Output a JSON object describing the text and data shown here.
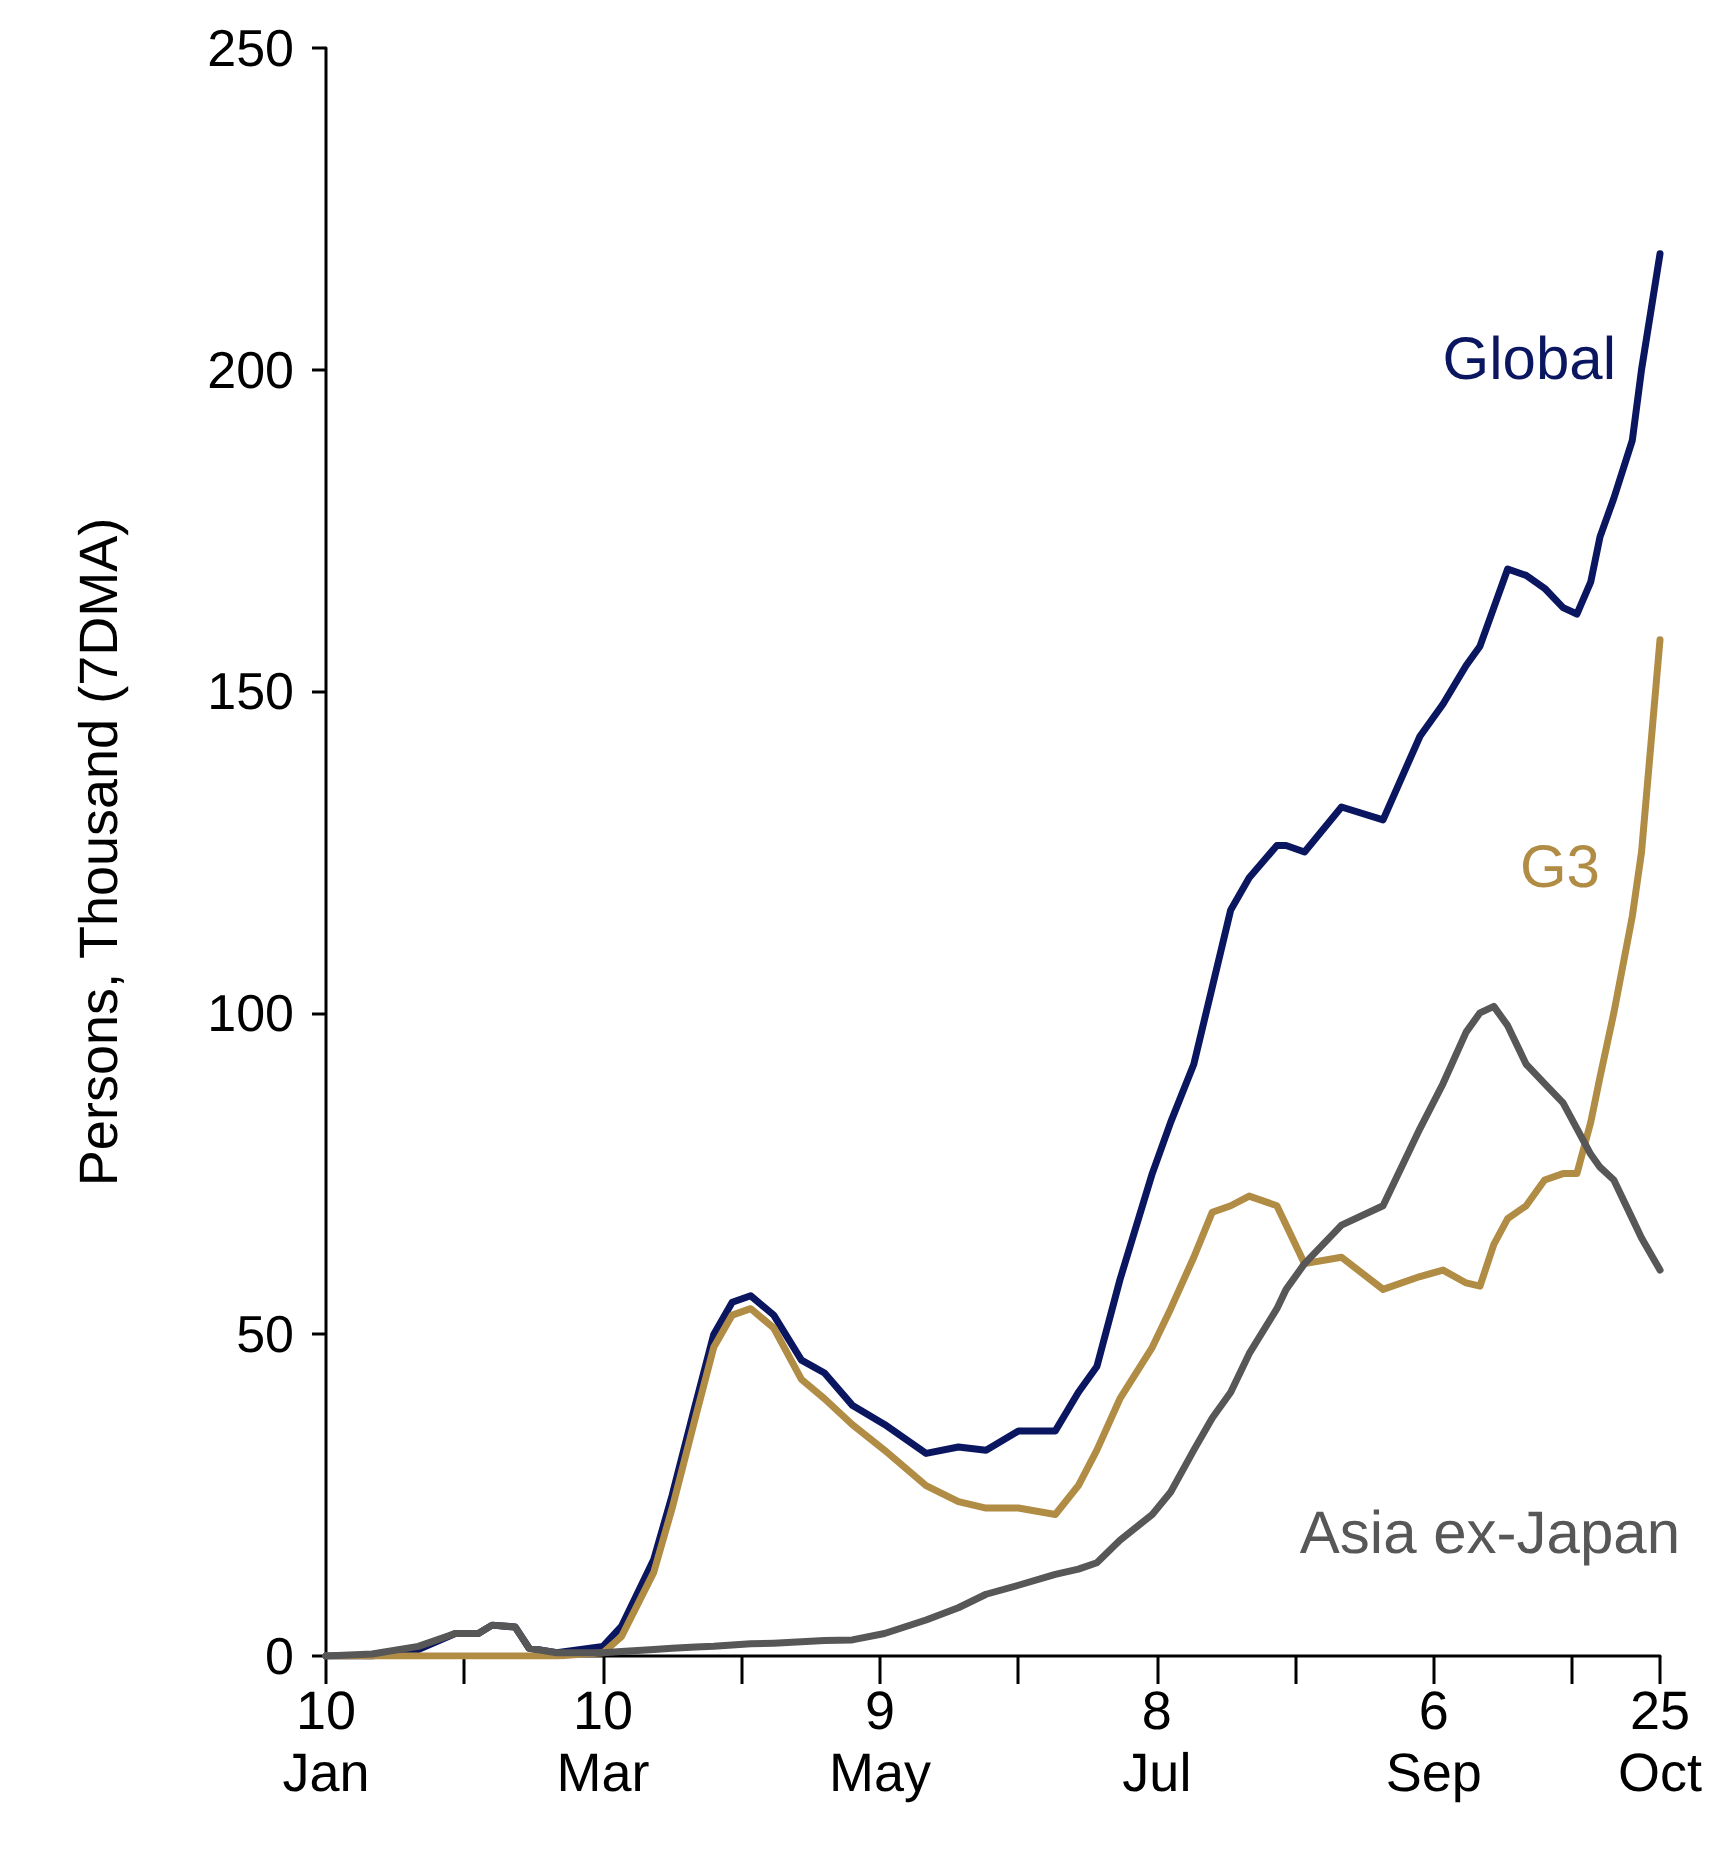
{
  "chart_data": {
    "type": "line",
    "ylabel": "Persons, Thousand (7DMA)",
    "marker": "none",
    "line_style": "solid",
    "x": [
      "--01-10",
      "--01-20",
      "--01-30",
      "--02-07",
      "--02-12",
      "--02-15",
      "--02-20",
      "--02-23",
      "--02-29",
      "--03-10",
      "--03-14",
      "--03-21",
      "--03-25",
      "--03-30",
      "--04-03",
      "--04-07",
      "--04-11",
      "--04-16",
      "--04-22",
      "--04-27",
      "--05-03",
      "--05-10",
      "--05-19",
      "--05-26",
      "--06-01",
      "--06-08",
      "--06-16",
      "--06-21",
      "--06-25",
      "--06-30",
      "--07-07",
      "--07-11",
      "--07-16",
      "--07-20",
      "--07-24",
      "--07-28",
      "--08-03",
      "--08-05",
      "--08-09",
      "--08-17",
      "--08-26",
      "--09-03",
      "--09-08",
      "--09-13",
      "--09-16",
      "--09-19",
      "--09-22",
      "--09-26",
      "--09-30",
      "--10-04",
      "--10-07",
      "--10-10",
      "--10-12",
      "--10-15",
      "--10-19",
      "--10-21",
      "--10-25"
    ],
    "series": [
      {
        "name": "Global",
        "color": "#0b1660",
        "values": [
          0,
          0,
          1,
          3.5,
          3.5,
          4.8,
          4.5,
          1.2,
          0.5,
          1.5,
          4.6,
          15,
          25,
          39,
          50,
          55,
          56,
          53,
          46,
          44,
          39,
          36,
          31.5,
          32.5,
          32,
          35,
          35,
          41,
          45,
          58.5,
          75,
          83,
          92,
          104,
          116,
          121,
          126,
          126,
          125,
          132,
          130,
          143,
          148,
          154,
          157,
          163,
          169,
          168,
          166,
          163,
          162,
          167,
          174,
          180,
          189,
          200,
          218
        ]
      },
      {
        "name": "G3",
        "color": "#b08c44",
        "values": [
          0,
          0,
          0,
          0,
          0,
          0,
          0,
          0,
          0,
          0.5,
          3,
          13,
          23,
          37,
          48,
          53,
          54,
          51,
          43,
          40,
          36,
          32,
          26.5,
          24,
          23,
          23,
          22,
          26.5,
          32,
          40,
          48,
          54,
          62,
          69,
          70,
          71.5,
          70,
          67,
          61,
          62,
          57,
          59,
          60,
          58,
          57.5,
          64,
          68,
          70,
          74,
          75,
          75,
          83,
          90,
          100,
          115,
          125,
          158
        ]
      },
      {
        "name": "Asia ex-Japan",
        "color": "#575757",
        "values": [
          0,
          0.3,
          1.5,
          3.5,
          3.5,
          4.8,
          4.5,
          1.2,
          0.5,
          0.5,
          0.7,
          1,
          1.2,
          1.4,
          1.5,
          1.7,
          1.9,
          2,
          2.2,
          2.4,
          2.5,
          3.5,
          5.6,
          7.5,
          9.6,
          11,
          12.7,
          13.5,
          14.5,
          18,
          22,
          25.5,
          32,
          37,
          41,
          47,
          54,
          57,
          61,
          67,
          70,
          82,
          89,
          97,
          100,
          101,
          98,
          92,
          89,
          86,
          82,
          78,
          76,
          74,
          68,
          65,
          60
        ]
      }
    ],
    "xlim": [
      "--01-10",
      "--10-25"
    ],
    "xticks": [
      {
        "value": "--01-10",
        "label": "10\nJan"
      },
      {
        "value": "--02-09",
        "label": null
      },
      {
        "value": "--03-10",
        "label": "10\nMar"
      },
      {
        "value": "--04-09",
        "label": null
      },
      {
        "value": "--05-09",
        "label": "9\nMay"
      },
      {
        "value": "--06-08",
        "label": null
      },
      {
        "value": "--07-08",
        "label": "8\nJul"
      },
      {
        "value": "--08-07",
        "label": null
      },
      {
        "value": "--09-06",
        "label": "6\nSep"
      },
      {
        "value": "--10-06",
        "label": null
      },
      {
        "value": "--10-25",
        "label": "25\nOct"
      }
    ],
    "ylim": [
      0,
      250
    ],
    "yticks": [
      0,
      50,
      100,
      150,
      200,
      250
    ]
  }
}
